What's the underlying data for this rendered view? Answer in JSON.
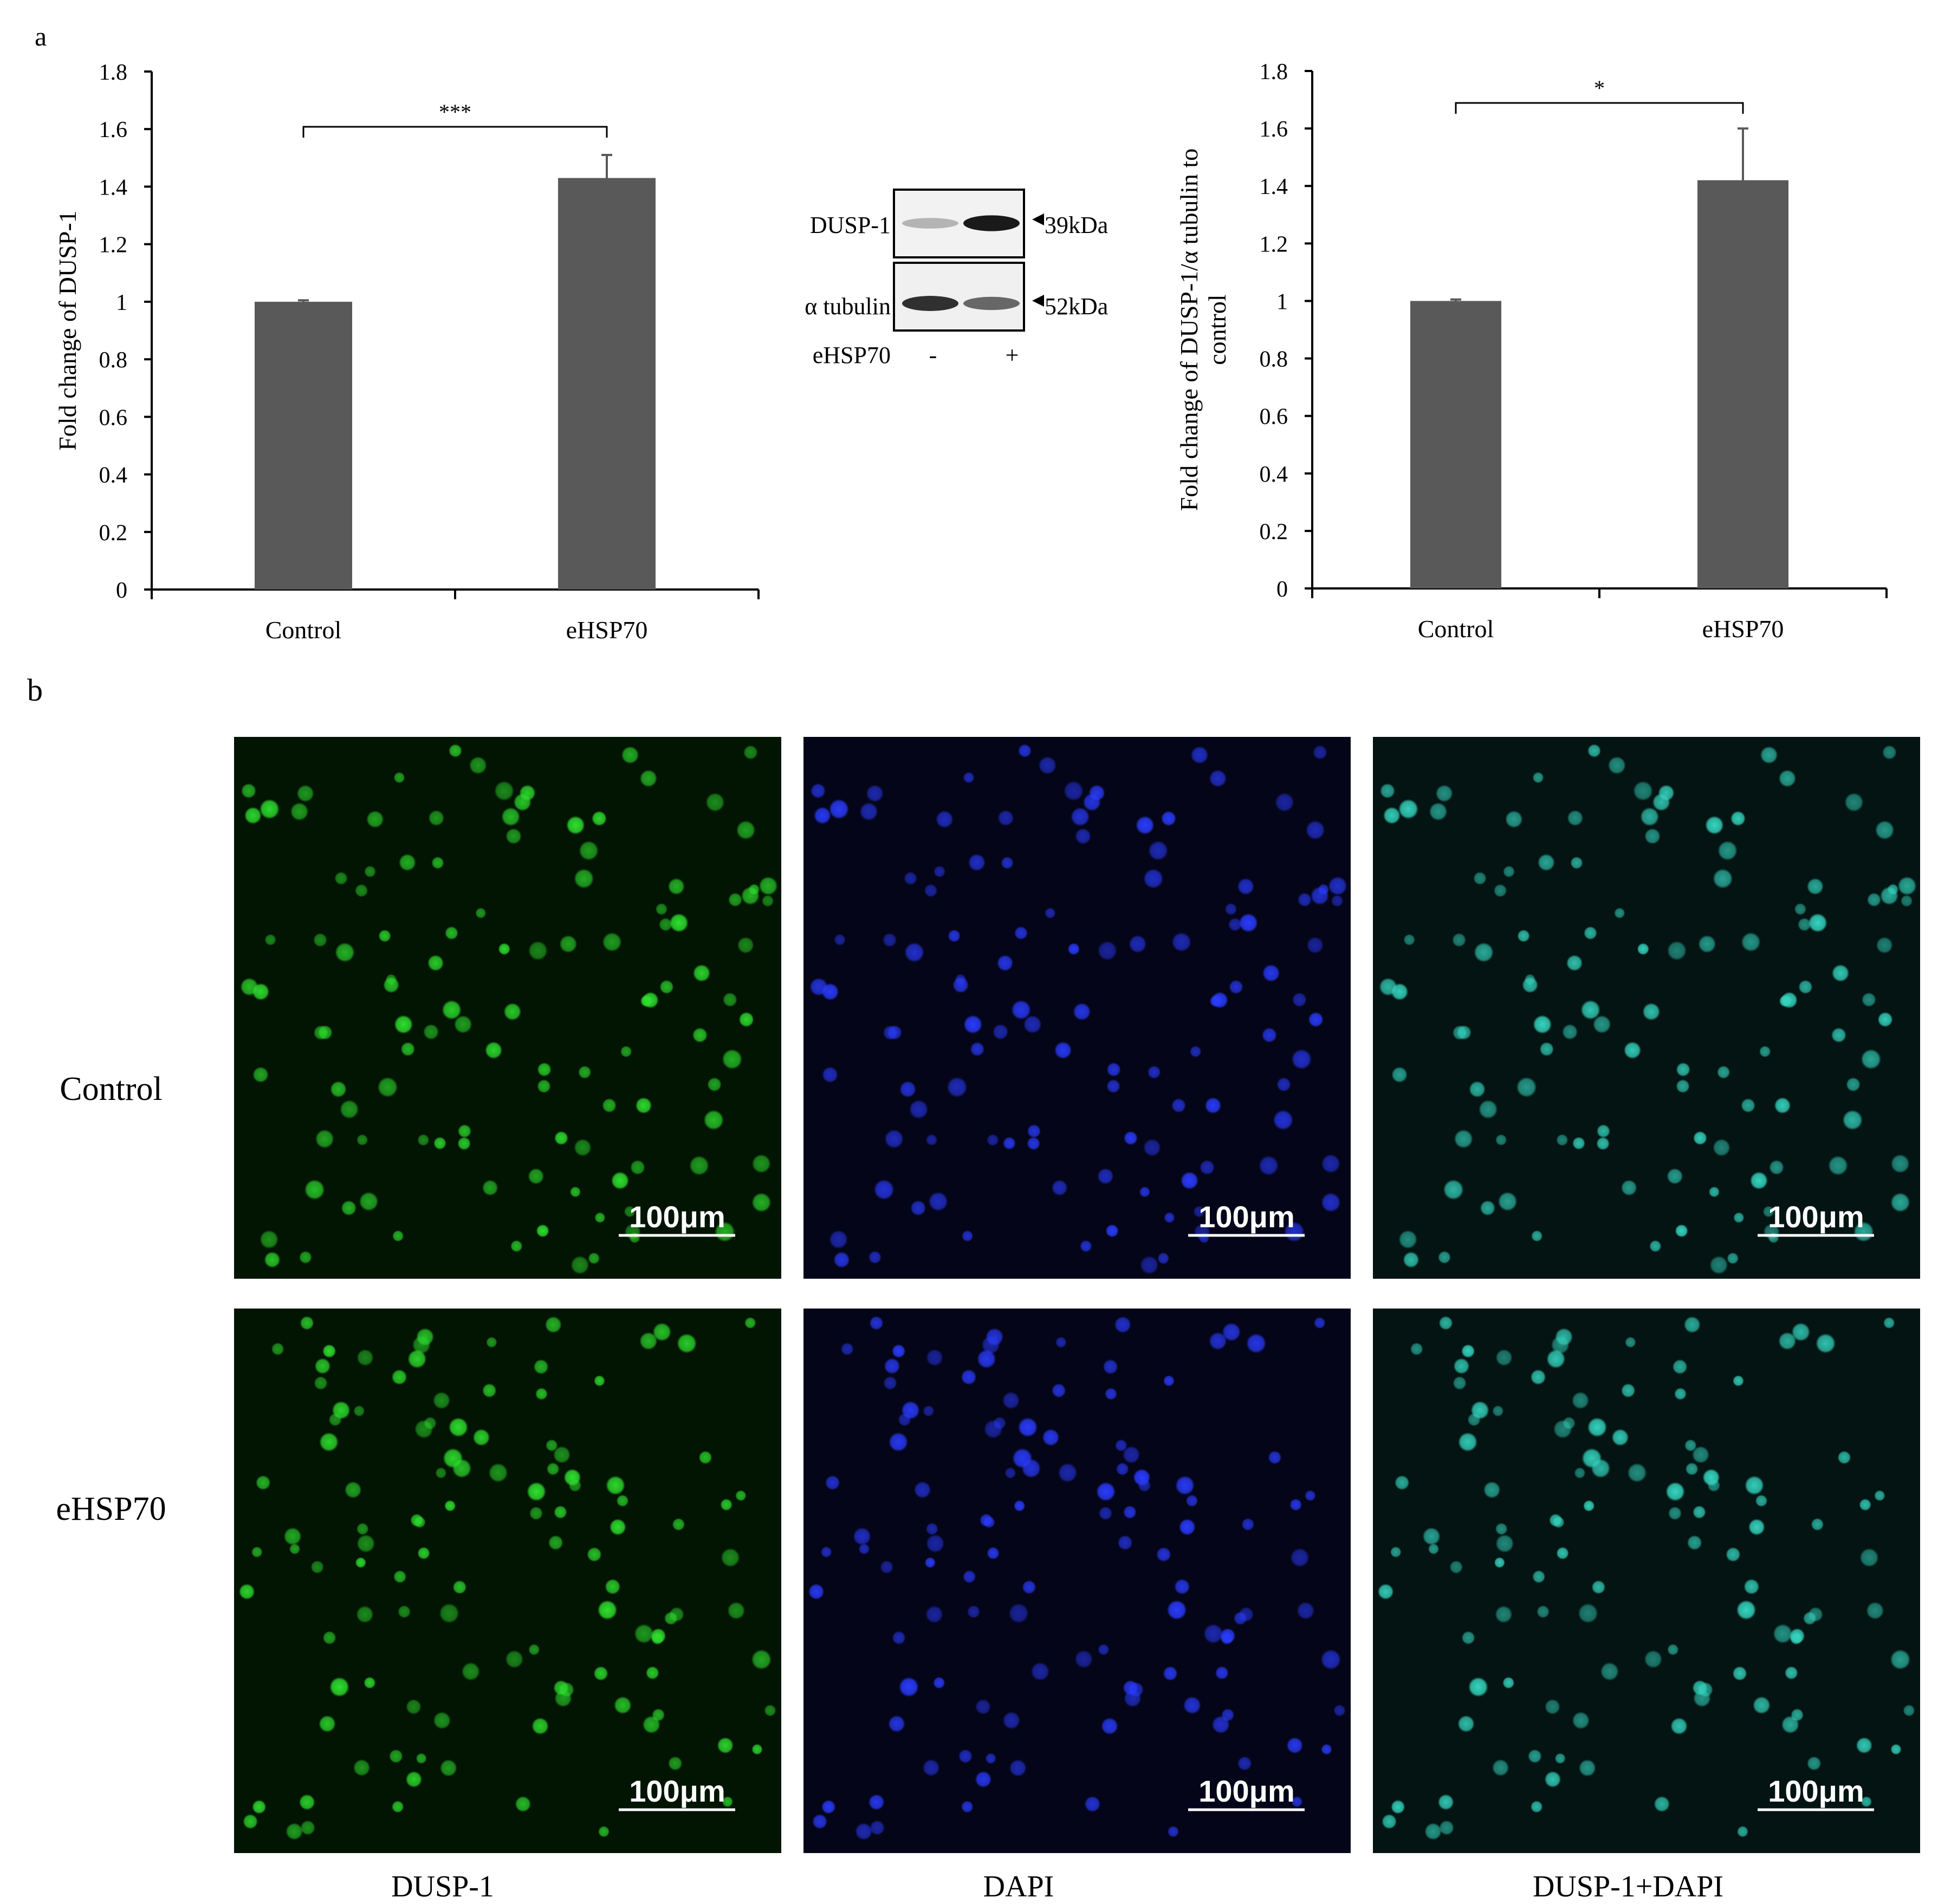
{
  "panel_a_label": "a",
  "panel_b_label": "b",
  "chart_data": [
    {
      "type": "bar",
      "categories": [
        "Control",
        "eHSP70"
      ],
      "values": [
        1.0,
        1.43
      ],
      "errors": [
        0.005,
        0.08
      ],
      "ylabel": "Fold change of DUSP-1",
      "xlabel": "",
      "ylim": [
        0,
        1.8
      ],
      "yticks": [
        "0",
        "0.2",
        "0.4",
        "0.6",
        "0.8",
        "1",
        "1.2",
        "1.4",
        "1.6",
        "1.8"
      ],
      "significance": "***",
      "bar_color": "#595959",
      "grid": false
    },
    {
      "type": "bar",
      "categories": [
        "Control",
        "eHSP70"
      ],
      "values": [
        1.0,
        1.42
      ],
      "errors": [
        0.005,
        0.18
      ],
      "ylabel": "Fold change of DUSP-1/α tubulin to control",
      "ylabel_lines": [
        "Fold change of DUSP-1/α tubulin to",
        "control"
      ],
      "xlabel": "",
      "ylim": [
        0,
        1.8
      ],
      "yticks": [
        "0",
        "0.2",
        "0.4",
        "0.6",
        "0.8",
        "1",
        "1.2",
        "1.4",
        "1.6",
        "1.8"
      ],
      "significance": "*",
      "bar_color": "#595959",
      "grid": false
    }
  ],
  "blot": {
    "rows": [
      {
        "label": "DUSP-1",
        "marker": "39kDa",
        "band_intensity": [
          0.25,
          0.95
        ]
      },
      {
        "label": "α tubulin",
        "marker": "52kDa",
        "band_intensity": [
          0.85,
          0.6
        ]
      }
    ],
    "treatment_label": "eHSP70",
    "lanes": [
      "-",
      "+"
    ]
  },
  "microscopy": {
    "rows": [
      "Control",
      "eHSP70"
    ],
    "columns": [
      "DUSP-1",
      "DAPI",
      "DUSP-1+DAPI"
    ],
    "scale_bar": "100μm",
    "channel_colors": [
      "#2ee02e",
      "#2a3cff",
      "#35d6c0"
    ]
  }
}
